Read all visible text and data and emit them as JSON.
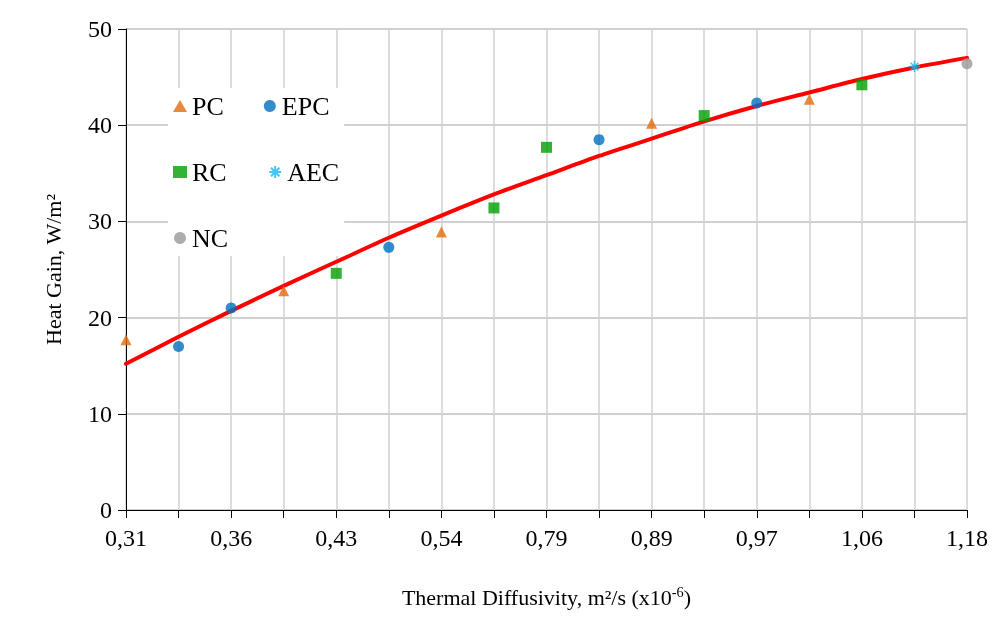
{
  "chart_data": {
    "type": "scatter",
    "xlabel": "Thermal Diffusivity, m²/s (x10$^{-6}$)",
    "ylabel": "Heat Gain, W/m²",
    "categories": [
      "0,31",
      null,
      "0,36",
      null,
      "0,43",
      null,
      "0,54",
      null,
      "0,79",
      null,
      "0,89",
      null,
      "0,97",
      null,
      "1,06",
      null,
      "1,18"
    ],
    "ylim": [
      0,
      50
    ],
    "yticks": [
      0,
      10,
      20,
      30,
      40,
      50
    ],
    "grid": true,
    "legend": "top left",
    "series": [
      {
        "name": "PC",
        "color": "#e36c0a",
        "marker": "triangle",
        "values": [
          17.7,
          null,
          null,
          22.8,
          null,
          null,
          28.9,
          null,
          null,
          null,
          40.2,
          null,
          null,
          42.7,
          null,
          null,
          null
        ]
      },
      {
        "name": "EPC",
        "color": "#0070c0",
        "marker": "circle",
        "values": [
          null,
          17.0,
          21.0,
          null,
          null,
          27.3,
          null,
          null,
          null,
          38.5,
          null,
          null,
          42.3,
          null,
          null,
          null,
          null
        ]
      },
      {
        "name": "RC",
        "color": "#00a000",
        "marker": "square",
        "values": [
          null,
          null,
          null,
          null,
          24.6,
          null,
          null,
          31.4,
          37.7,
          null,
          null,
          41.0,
          null,
          null,
          44.2,
          null,
          null
        ]
      },
      {
        "name": "AEC",
        "color": "#1cb4f0",
        "marker": "cross",
        "values": [
          null,
          null,
          null,
          null,
          null,
          null,
          null,
          null,
          null,
          null,
          null,
          null,
          null,
          null,
          null,
          46.1,
          null
        ]
      },
      {
        "name": "NC",
        "color": "#999999",
        "marker": "circle",
        "values": [
          null,
          null,
          null,
          null,
          null,
          null,
          null,
          null,
          null,
          null,
          null,
          null,
          null,
          null,
          null,
          null,
          46.4
        ]
      },
      {
        "type": "line",
        "color": "#ff0000",
        "marker": "none",
        "values": [
          15.2,
          18.0,
          20.7,
          23.3,
          25.8,
          28.3,
          30.6,
          32.8,
          34.8,
          36.8,
          38.6,
          40.4,
          42.0,
          43.4,
          44.8,
          46.0,
          47.0
        ]
      }
    ]
  }
}
